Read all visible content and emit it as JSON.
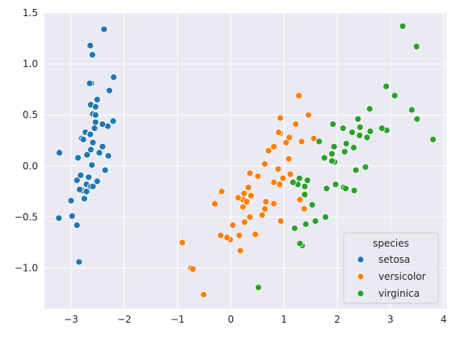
{
  "chart_data": {
    "type": "scatter",
    "title": "",
    "xlabel": "",
    "ylabel": "",
    "xlim": [
      -3.5,
      4.05
    ],
    "ylim": [
      -1.4,
      1.5
    ],
    "xticks": [
      -3,
      -2,
      -1,
      0,
      1,
      2,
      3,
      4
    ],
    "yticks": [
      -1.0,
      -0.5,
      0.0,
      0.5,
      1.0,
      1.5
    ],
    "xtick_labels": [
      "−3",
      "−2",
      "−1",
      "0",
      "1",
      "2",
      "3",
      "4"
    ],
    "ytick_labels": [
      "−1.0",
      "−0.5",
      "0.0",
      "0.5",
      "1.0",
      "1.5"
    ],
    "grid": true,
    "background": "#eaeaf2",
    "legend": {
      "title": "species",
      "placement": "bottom-right"
    },
    "series": [
      {
        "name": "setosa",
        "color": "#1f77b4",
        "points": [
          [
            -2.68,
            0.32
          ],
          [
            -2.71,
            -0.18
          ],
          [
            -2.89,
            -0.14
          ],
          [
            -2.75,
            -0.32
          ],
          [
            -2.73,
            0.33
          ],
          [
            -2.28,
            0.74
          ],
          [
            -2.82,
            -0.09
          ],
          [
            -2.63,
            0.16
          ],
          [
            -2.89,
            -0.58
          ],
          [
            -2.67,
            -0.11
          ],
          [
            -2.51,
            0.65
          ],
          [
            -2.61,
            0.01
          ],
          [
            -2.79,
            -0.24
          ],
          [
            -3.23,
            -0.51
          ],
          [
            -2.64,
            1.18
          ],
          [
            -2.38,
            1.34
          ],
          [
            -2.62,
            0.81
          ],
          [
            -2.65,
            0.31
          ],
          [
            -2.2,
            0.87
          ],
          [
            -2.59,
            0.51
          ],
          [
            -2.31,
            0.39
          ],
          [
            -2.54,
            0.43
          ],
          [
            -3.22,
            0.13
          ],
          [
            -2.3,
            0.1
          ],
          [
            -2.36,
            -0.04
          ],
          [
            -2.51,
            -0.15
          ],
          [
            -2.47,
            0.13
          ],
          [
            -2.56,
            0.37
          ],
          [
            -2.64,
            0.31
          ],
          [
            -2.63,
            -0.2
          ],
          [
            -2.59,
            -0.2
          ],
          [
            -2.41,
            0.41
          ],
          [
            -2.65,
            0.81
          ],
          [
            -2.6,
            1.09
          ],
          [
            -2.67,
            -0.11
          ],
          [
            -2.87,
            0.08
          ],
          [
            -2.63,
            0.6
          ],
          [
            -2.8,
            0.27
          ],
          [
            -2.98,
            -0.49
          ],
          [
            -2.59,
            0.23
          ],
          [
            -2.77,
            0.26
          ],
          [
            -2.85,
            -0.94
          ],
          [
            -3.0,
            -0.34
          ],
          [
            -2.41,
            0.19
          ],
          [
            -2.21,
            0.44
          ],
          [
            -2.71,
            -0.25
          ],
          [
            -2.54,
            0.5
          ],
          [
            -2.84,
            -0.23
          ],
          [
            -2.54,
            0.58
          ],
          [
            -2.7,
            0.11
          ]
        ]
      },
      {
        "name": "versicolor",
        "color": "#ff7f0e",
        "points": [
          [
            1.28,
            0.69
          ],
          [
            0.93,
            0.32
          ],
          [
            1.46,
            0.5
          ],
          [
            0.18,
            -0.83
          ],
          [
            1.09,
            0.07
          ],
          [
            0.64,
            -0.42
          ],
          [
            1.1,
            0.28
          ],
          [
            -0.75,
            -1.0
          ],
          [
            1.04,
            0.23
          ],
          [
            -0.01,
            -0.72
          ],
          [
            -0.51,
            -1.26
          ],
          [
            0.51,
            -0.1
          ],
          [
            0.26,
            -0.55
          ],
          [
            0.98,
            -0.12
          ],
          [
            -0.17,
            -0.25
          ],
          [
            0.93,
            0.47
          ],
          [
            0.66,
            -0.35
          ],
          [
            0.23,
            -0.33
          ],
          [
            0.94,
            -0.54
          ],
          [
            0.04,
            -0.58
          ],
          [
            1.12,
            -0.08
          ],
          [
            0.36,
            -0.07
          ],
          [
            1.3,
            -0.33
          ],
          [
            0.92,
            -0.18
          ],
          [
            0.71,
            0.15
          ],
          [
            0.9,
            0.33
          ],
          [
            1.33,
            0.24
          ],
          [
            1.56,
            0.27
          ],
          [
            0.81,
            -0.16
          ],
          [
            -0.3,
            -0.37
          ],
          [
            -0.07,
            -0.7
          ],
          [
            -0.19,
            -0.68
          ],
          [
            0.14,
            -0.31
          ],
          [
            1.38,
            -0.42
          ],
          [
            0.59,
            -0.48
          ],
          [
            0.81,
            0.19
          ],
          [
            1.22,
            0.41
          ],
          [
            0.81,
            -0.37
          ],
          [
            0.25,
            -0.27
          ],
          [
            0.16,
            -0.68
          ],
          [
            0.46,
            -0.67
          ],
          [
            0.89,
            -0.03
          ],
          [
            0.23,
            -0.4
          ],
          [
            -0.71,
            -1.01
          ],
          [
            0.36,
            -0.5
          ],
          [
            0.33,
            -0.21
          ],
          [
            0.38,
            -0.29
          ],
          [
            0.64,
            0.02
          ],
          [
            -0.91,
            -0.75
          ],
          [
            0.3,
            -0.35
          ]
        ]
      },
      {
        "name": "virginica",
        "color": "#2ca02c",
        "points": [
          [
            2.53,
            -0.01
          ],
          [
            1.41,
            -0.57
          ],
          [
            2.62,
            0.34
          ],
          [
            1.97,
            -0.18
          ],
          [
            2.35,
            -0.04
          ],
          [
            3.4,
            0.55
          ],
          [
            0.52,
            -1.19
          ],
          [
            2.93,
            0.35
          ],
          [
            2.32,
            -0.24
          ],
          [
            2.92,
            0.78
          ],
          [
            1.66,
            0.24
          ],
          [
            1.8,
            -0.22
          ],
          [
            2.17,
            0.22
          ],
          [
            1.34,
            -0.78
          ],
          [
            1.59,
            -0.54
          ],
          [
            1.9,
            0.12
          ],
          [
            1.95,
            0.04
          ],
          [
            3.49,
            1.17
          ],
          [
            3.8,
            0.26
          ],
          [
            1.3,
            -0.76
          ],
          [
            2.43,
            0.38
          ],
          [
            1.2,
            -0.61
          ],
          [
            3.5,
            0.46
          ],
          [
            1.39,
            -0.2
          ],
          [
            2.28,
            0.33
          ],
          [
            2.61,
            0.56
          ],
          [
            1.26,
            -0.18
          ],
          [
            1.29,
            -0.12
          ],
          [
            2.12,
            -0.21
          ],
          [
            2.39,
            0.46
          ],
          [
            2.84,
            0.37
          ],
          [
            3.23,
            1.37
          ],
          [
            2.16,
            -0.22
          ],
          [
            1.44,
            -0.14
          ],
          [
            1.78,
            -0.5
          ],
          [
            3.08,
            0.69
          ],
          [
            2.14,
            0.14
          ],
          [
            1.9,
            0.05
          ],
          [
            1.17,
            -0.16
          ],
          [
            2.11,
            0.37
          ],
          [
            2.31,
            0.18
          ],
          [
            1.92,
            0.41
          ],
          [
            1.41,
            -0.57
          ],
          [
            2.56,
            0.28
          ],
          [
            2.42,
            0.3
          ],
          [
            1.94,
            0.19
          ],
          [
            1.53,
            -0.38
          ],
          [
            1.76,
            0.08
          ],
          [
            1.9,
            0.12
          ],
          [
            1.39,
            -0.28
          ]
        ]
      }
    ]
  }
}
